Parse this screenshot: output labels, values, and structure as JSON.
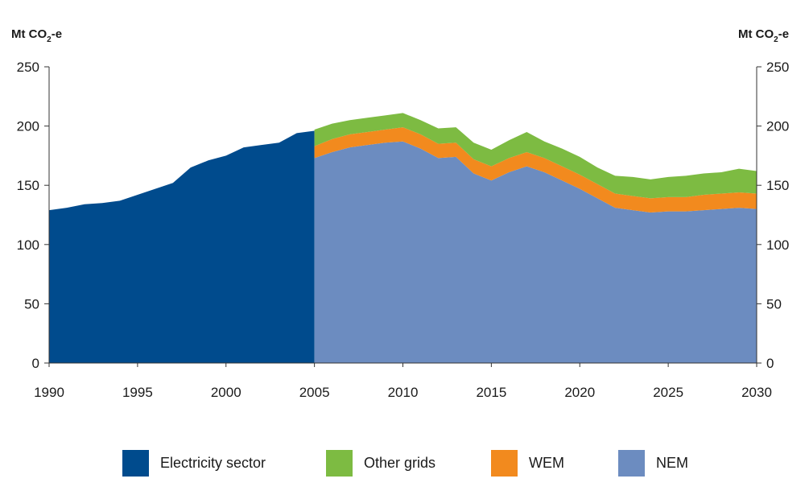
{
  "chart_data": {
    "type": "area",
    "y_axis_label": {
      "prefix": "Mt CO",
      "subscript": "2",
      "suffix": "-e"
    },
    "x_ticks": [
      "1990",
      "1995",
      "2000",
      "2005",
      "2010",
      "2015",
      "2020",
      "2025",
      "2030"
    ],
    "y_ticks": [
      "0",
      "50",
      "100",
      "150",
      "200",
      "250"
    ],
    "xlim": [
      1990,
      2030
    ],
    "ylim": [
      0,
      250
    ],
    "grid": false,
    "legend_position": "bottom",
    "colors": {
      "electricity_sector": "#004b8d",
      "other_grids": "#7dbb42",
      "wem": "#f28a1e",
      "nem": "#6c8cc0"
    },
    "historical": {
      "name": "Electricity sector",
      "x": [
        1990,
        1991,
        1992,
        1993,
        1994,
        1995,
        1996,
        1997,
        1998,
        1999,
        2000,
        2001,
        2002,
        2003,
        2004,
        2005
      ],
      "values": [
        129,
        131,
        134,
        135,
        137,
        142,
        147,
        152,
        165,
        171,
        175,
        182,
        184,
        186,
        194,
        196
      ]
    },
    "projection": {
      "x": [
        2005,
        2006,
        2007,
        2008,
        2009,
        2010,
        2011,
        2012,
        2013,
        2014,
        2015,
        2016,
        2017,
        2018,
        2019,
        2020,
        2021,
        2022,
        2023,
        2024,
        2025,
        2026,
        2027,
        2028,
        2029,
        2030
      ],
      "series": [
        {
          "name": "NEM",
          "values": [
            173,
            178,
            182,
            184,
            186,
            187,
            181,
            173,
            174,
            160,
            154,
            161,
            166,
            161,
            154,
            147,
            139,
            131,
            129,
            127,
            128,
            128,
            129,
            130,
            131,
            130
          ]
        },
        {
          "name": "WEM",
          "values": [
            10,
            11,
            11,
            11,
            11,
            12,
            12,
            12,
            12,
            12,
            12,
            12,
            12,
            12,
            12,
            12,
            12,
            12,
            12,
            12,
            12,
            12,
            13,
            13,
            13,
            13
          ]
        },
        {
          "name": "Other grids",
          "values": [
            14,
            13,
            12,
            12,
            12,
            12,
            12,
            13,
            13,
            14,
            14,
            15,
            17,
            14,
            15,
            15,
            14,
            15,
            16,
            16,
            17,
            18,
            18,
            18,
            20,
            19
          ]
        }
      ]
    },
    "legend": [
      {
        "label": "Electricity sector",
        "color": "#004b8d"
      },
      {
        "label": "Other grids",
        "color": "#7dbb42"
      },
      {
        "label": "WEM",
        "color": "#f28a1e"
      },
      {
        "label": "NEM",
        "color": "#6c8cc0"
      }
    ]
  }
}
